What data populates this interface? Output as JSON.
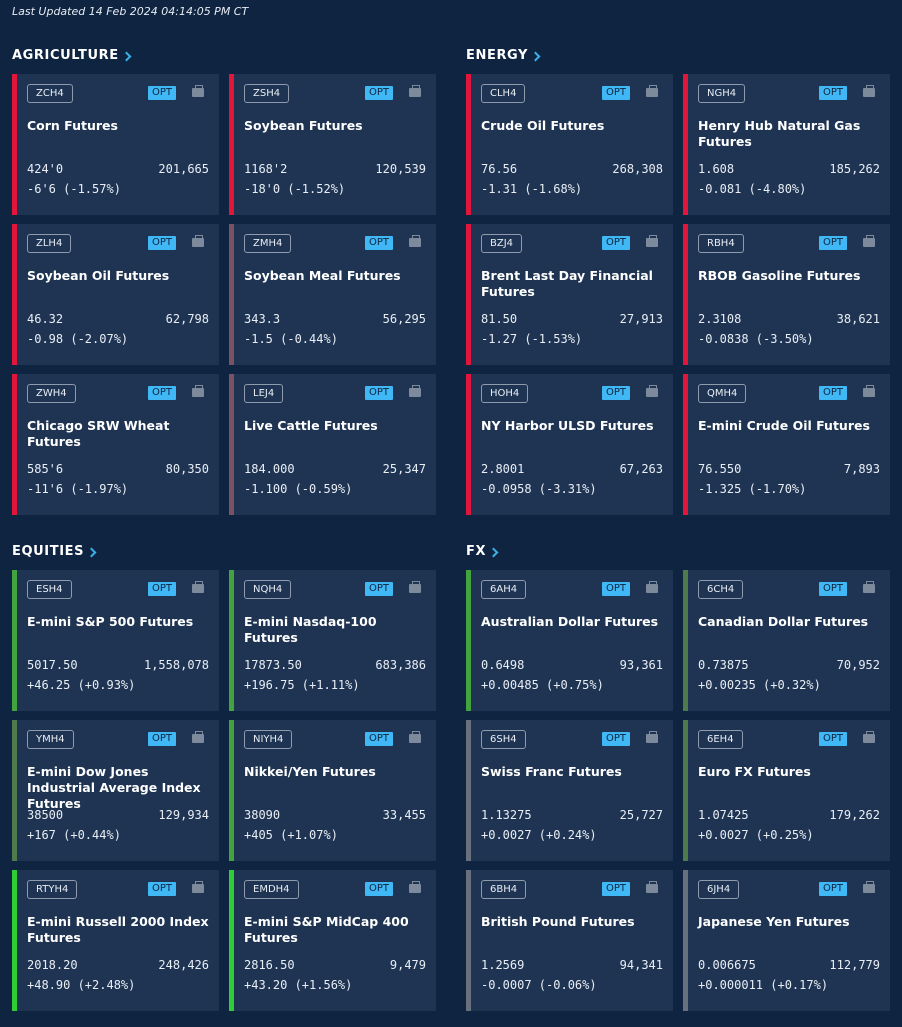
{
  "last_updated": "Last Updated 14 Feb 2024 04:14:05 PM CT",
  "colors": {
    "background": "#0f2440",
    "card": "#1e3452",
    "down": "#e0173a",
    "down_slight": "#7a5264",
    "up": "#43a33f",
    "up_slight": "#4f7a4c",
    "up_strong": "#2fce34",
    "neutral": "#67707c",
    "opt_badge": "#40b8f5"
  },
  "sections": [
    {
      "title": "AGRICULTURE",
      "cards": [
        {
          "code": "ZCH4",
          "name": "Corn Futures",
          "price": "424'0",
          "volume": "201,665",
          "change": "-6'6 (-1.57%)",
          "trend": "down",
          "opt": "OPT"
        },
        {
          "code": "ZSH4",
          "name": "Soybean Futures",
          "price": "1168'2",
          "volume": "120,539",
          "change": "-18'0 (-1.52%)",
          "trend": "down",
          "opt": "OPT"
        },
        {
          "code": "ZLH4",
          "name": "Soybean Oil Futures",
          "price": "46.32",
          "volume": "62,798",
          "change": "-0.98 (-2.07%)",
          "trend": "down",
          "opt": "OPT"
        },
        {
          "code": "ZMH4",
          "name": "Soybean Meal Futures",
          "price": "343.3",
          "volume": "56,295",
          "change": "-1.5 (-0.44%)",
          "trend": "down_slight",
          "opt": "OPT"
        },
        {
          "code": "ZWH4",
          "name": "Chicago SRW Wheat Futures",
          "price": "585'6",
          "volume": "80,350",
          "change": "-11'6 (-1.97%)",
          "trend": "down",
          "opt": "OPT"
        },
        {
          "code": "LEJ4",
          "name": "Live Cattle Futures",
          "price": "184.000",
          "volume": "25,347",
          "change": "-1.100 (-0.59%)",
          "trend": "down_slight",
          "opt": "OPT"
        }
      ]
    },
    {
      "title": "ENERGY",
      "cards": [
        {
          "code": "CLH4",
          "name": "Crude Oil Futures",
          "price": "76.56",
          "volume": "268,308",
          "change": "-1.31 (-1.68%)",
          "trend": "down",
          "opt": "OPT"
        },
        {
          "code": "NGH4",
          "name": "Henry Hub Natural Gas Futures",
          "price": "1.608",
          "volume": "185,262",
          "change": "-0.081 (-4.80%)",
          "trend": "down",
          "opt": "OPT"
        },
        {
          "code": "BZJ4",
          "name": "Brent Last Day Financial Futures",
          "price": "81.50",
          "volume": "27,913",
          "change": "-1.27 (-1.53%)",
          "trend": "down",
          "opt": "OPT"
        },
        {
          "code": "RBH4",
          "name": "RBOB Gasoline Futures",
          "price": "2.3108",
          "volume": "38,621",
          "change": "-0.0838 (-3.50%)",
          "trend": "down",
          "opt": "OPT"
        },
        {
          "code": "HOH4",
          "name": "NY Harbor ULSD Futures",
          "price": "2.8001",
          "volume": "67,263",
          "change": "-0.0958 (-3.31%)",
          "trend": "down",
          "opt": "OPT"
        },
        {
          "code": "QMH4",
          "name": "E-mini Crude Oil Futures",
          "price": "76.550",
          "volume": "7,893",
          "change": "-1.325 (-1.70%)",
          "trend": "down",
          "opt": "OPT"
        }
      ]
    },
    {
      "title": "EQUITIES",
      "cards": [
        {
          "code": "ESH4",
          "name": "E-mini S&P 500 Futures",
          "price": "5017.50",
          "volume": "1,558,078",
          "change": "+46.25 (+0.93%)",
          "trend": "up",
          "opt": "OPT"
        },
        {
          "code": "NQH4",
          "name": "E-mini Nasdaq-100 Futures",
          "price": "17873.50",
          "volume": "683,386",
          "change": "+196.75 (+1.11%)",
          "trend": "up",
          "opt": "OPT"
        },
        {
          "code": "YMH4",
          "name": "E-mini Dow Jones Industrial Average Index Futures",
          "price": "38500",
          "volume": "129,934",
          "change": "+167 (+0.44%)",
          "trend": "up_slight",
          "opt": "OPT"
        },
        {
          "code": "NIYH4",
          "name": "Nikkei/Yen Futures",
          "price": "38090",
          "volume": "33,455",
          "change": "+405 (+1.07%)",
          "trend": "up",
          "opt": "OPT"
        },
        {
          "code": "RTYH4",
          "name": "E-mini  Russell 2000 Index Futures",
          "price": "2018.20",
          "volume": "248,426",
          "change": "+48.90 (+2.48%)",
          "trend": "up_strong",
          "opt": "OPT"
        },
        {
          "code": "EMDH4",
          "name": "E-mini S&P MidCap 400 Futures",
          "price": "2816.50",
          "volume": "9,479",
          "change": "+43.20 (+1.56%)",
          "trend": "up_strong",
          "opt": "OPT"
        }
      ]
    },
    {
      "title": "FX",
      "cards": [
        {
          "code": "6AH4",
          "name": "Australian Dollar Futures",
          "price": "0.6498",
          "volume": "93,361",
          "change": "+0.00485 (+0.75%)",
          "trend": "up",
          "opt": "OPT"
        },
        {
          "code": "6CH4",
          "name": "Canadian Dollar Futures",
          "price": "0.73875",
          "volume": "70,952",
          "change": "+0.00235 (+0.32%)",
          "trend": "up_slight",
          "opt": "OPT"
        },
        {
          "code": "6SH4",
          "name": "Swiss Franc Futures",
          "price": "1.13275",
          "volume": "25,727",
          "change": "+0.0027 (+0.24%)",
          "trend": "neutral",
          "opt": "OPT"
        },
        {
          "code": "6EH4",
          "name": "Euro FX Futures",
          "price": "1.07425",
          "volume": "179,262",
          "change": "+0.0027 (+0.25%)",
          "trend": "up_slight",
          "opt": "OPT"
        },
        {
          "code": "6BH4",
          "name": "British Pound Futures",
          "price": "1.2569",
          "volume": "94,341",
          "change": "-0.0007 (-0.06%)",
          "trend": "neutral",
          "opt": "OPT"
        },
        {
          "code": "6JH4",
          "name": "Japanese Yen Futures",
          "price": "0.006675",
          "volume": "112,779",
          "change": "+0.000011 (+0.17%)",
          "trend": "neutral",
          "opt": "OPT"
        }
      ]
    }
  ]
}
